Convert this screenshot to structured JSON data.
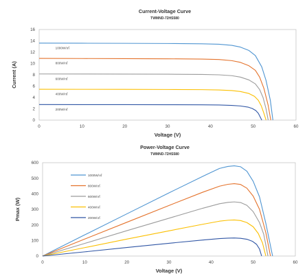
{
  "chart_data": [
    {
      "type": "line",
      "title": "Current-Voltage Curve",
      "subtitle": "TWMND-72HS580",
      "xlabel": "Voltage  (V)",
      "ylabel": "Current  (A)",
      "xlim": [
        0,
        60
      ],
      "ylim": [
        0,
        16
      ],
      "xticks": [
        0,
        10,
        20,
        30,
        40,
        50,
        60
      ],
      "yticks": [
        0,
        2,
        4,
        6,
        8,
        10,
        12,
        14,
        16
      ],
      "grid": false,
      "series": [
        {
          "name": "1000W/㎡",
          "color": "#4e94d1",
          "x": [
            0,
            10,
            20,
            30,
            38,
            42,
            45,
            47,
            49,
            50.5,
            52,
            53,
            54,
            54.6
          ],
          "y": [
            13.6,
            13.58,
            13.56,
            13.53,
            13.48,
            13.4,
            13.2,
            12.9,
            12.3,
            11.4,
            9.4,
            7.0,
            3.5,
            0
          ]
        },
        {
          "name": "800W/㎡",
          "color": "#e4722b",
          "x": [
            0,
            10,
            20,
            30,
            38,
            42,
            45,
            47,
            49,
            50.5,
            51.5,
            52.5,
            53.5,
            54.1
          ],
          "y": [
            10.9,
            10.88,
            10.86,
            10.83,
            10.78,
            10.7,
            10.5,
            10.2,
            9.6,
            8.8,
            7.6,
            5.6,
            2.6,
            0
          ]
        },
        {
          "name": "600W/㎡",
          "color": "#9b9b9b",
          "x": [
            0,
            10,
            20,
            30,
            38,
            42,
            45,
            47,
            49,
            50.5,
            51.5,
            52.3,
            53.0,
            53.5
          ],
          "y": [
            8.15,
            8.14,
            8.13,
            8.11,
            8.07,
            8.0,
            7.85,
            7.6,
            7.1,
            6.4,
            5.4,
            4.0,
            2.0,
            0
          ]
        },
        {
          "name": "400W/㎡",
          "color": "#fbbf00",
          "x": [
            0,
            10,
            20,
            30,
            38,
            42,
            45,
            47,
            49,
            50.3,
            51.2,
            51.9,
            52.5,
            53.0
          ],
          "y": [
            5.45,
            5.44,
            5.43,
            5.41,
            5.38,
            5.33,
            5.22,
            5.05,
            4.7,
            4.2,
            3.5,
            2.5,
            1.2,
            0
          ]
        },
        {
          "name": "200W/㎡",
          "color": "#2f55a4",
          "x": [
            0,
            10,
            20,
            30,
            38,
            42,
            45,
            47,
            48.8,
            49.8,
            50.6,
            51.2,
            51.6,
            52.0
          ],
          "y": [
            2.75,
            2.74,
            2.73,
            2.72,
            2.7,
            2.67,
            2.6,
            2.5,
            2.3,
            2.05,
            1.7,
            1.2,
            0.6,
            0
          ]
        }
      ]
    },
    {
      "type": "line",
      "title": "Power-Voltage Curve",
      "subtitle": "TWMND-72HS580",
      "xlabel": "Voltage  (V)",
      "ylabel": "Pmax  (W)",
      "xlim": [
        0,
        60
      ],
      "ylim": [
        0,
        600
      ],
      "xticks": [
        0,
        10,
        20,
        30,
        40,
        50,
        60
      ],
      "yticks": [
        0,
        100,
        200,
        300,
        400,
        500,
        600
      ],
      "grid": false,
      "legend": "top-left",
      "series": [
        {
          "name": "1000W/㎡",
          "color": "#4e94d1",
          "x": [
            0,
            10,
            20,
            30,
            38,
            42,
            44,
            45.5,
            47,
            48.5,
            50,
            51.5,
            53,
            54.6
          ],
          "y": [
            0,
            136,
            271,
            406,
            512,
            563,
            576,
            580,
            574,
            545,
            480,
            380,
            210,
            0
          ]
        },
        {
          "name": "800W/㎡",
          "color": "#e4722b",
          "x": [
            0,
            10,
            20,
            30,
            38,
            42,
            44,
            45.5,
            47,
            48.5,
            50,
            51.5,
            53,
            54.1
          ],
          "y": [
            0,
            109,
            217,
            325,
            410,
            449,
            461,
            465,
            460,
            436,
            385,
            300,
            150,
            0
          ]
        },
        {
          "name": "600W/㎡",
          "color": "#9b9b9b",
          "x": [
            0,
            10,
            20,
            30,
            38,
            42,
            44,
            45.5,
            47,
            48.5,
            50,
            51.5,
            52.5,
            53.5
          ],
          "y": [
            0,
            81,
            163,
            243,
            307,
            336,
            345,
            348,
            344,
            326,
            285,
            215,
            140,
            0
          ]
        },
        {
          "name": "400W/㎡",
          "color": "#fbbf00",
          "x": [
            0,
            10,
            20,
            30,
            38,
            42,
            44,
            45.5,
            47,
            48.5,
            50,
            51.2,
            52.2,
            53.0
          ],
          "y": [
            0,
            54,
            109,
            162,
            204,
            224,
            230,
            232,
            228,
            215,
            188,
            145,
            85,
            0
          ]
        },
        {
          "name": "200W/㎡",
          "color": "#2f55a4",
          "x": [
            0,
            10,
            20,
            30,
            38,
            42,
            44,
            45.5,
            47,
            48.5,
            49.8,
            50.8,
            51.5,
            52.0
          ],
          "y": [
            0,
            27,
            55,
            82,
            103,
            112,
            115,
            116,
            114,
            108,
            95,
            75,
            45,
            0
          ]
        }
      ]
    }
  ]
}
